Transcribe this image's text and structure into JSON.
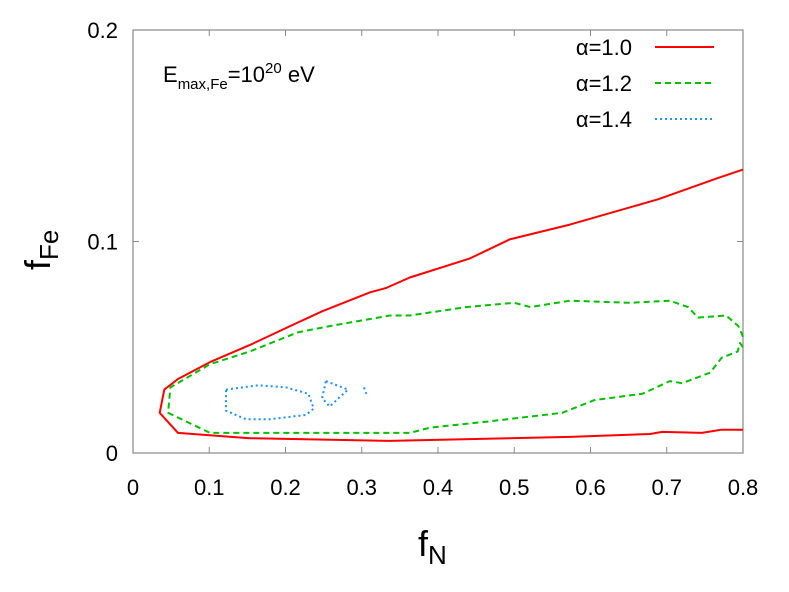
{
  "chart_data": {
    "type": "line",
    "subtype": "contour",
    "xlabel": "f",
    "xlabel_sub": "N",
    "ylabel": "f",
    "ylabel_sub": "Fe",
    "xlim": [
      0,
      0.8
    ],
    "ylim": [
      0,
      0.2
    ],
    "xticks": [
      "0",
      "0.1",
      "0.2",
      "0.3",
      "0.4",
      "0.5",
      "0.6",
      "0.7",
      "0.8"
    ],
    "yticks": [
      "0",
      "0.1",
      "0.2"
    ],
    "grid": false,
    "legend_position": "top-right",
    "annotation": {
      "base": "E",
      "sub": "max,Fe",
      "eq": "=10",
      "sup": "20",
      "unit": " eV"
    },
    "series": [
      {
        "name": "α=1.0",
        "color": "#ff0000",
        "dash": "solid",
        "paths": [
          [
            [
              0.8,
              0.134
            ],
            [
              0.767,
              0.13
            ],
            [
              0.689,
              0.12
            ],
            [
              0.573,
              0.108
            ],
            [
              0.494,
              0.101
            ],
            [
              0.442,
              0.092
            ],
            [
              0.363,
              0.083
            ],
            [
              0.332,
              0.078
            ],
            [
              0.311,
              0.076
            ],
            [
              0.248,
              0.067
            ],
            [
              0.206,
              0.06
            ],
            [
              0.153,
              0.051
            ],
            [
              0.101,
              0.043
            ],
            [
              0.059,
              0.035
            ],
            [
              0.041,
              0.03
            ],
            [
              0.035,
              0.019
            ],
            [
              0.059,
              0.0095
            ],
            [
              0.153,
              0.007
            ],
            [
              0.337,
              0.0057
            ],
            [
              0.573,
              0.0076
            ],
            [
              0.678,
              0.009
            ],
            [
              0.694,
              0.01
            ],
            [
              0.746,
              0.0095
            ],
            [
              0.772,
              0.011
            ],
            [
              0.8,
              0.011
            ]
          ]
        ]
      },
      {
        "name": "α=1.2",
        "color": "#00c000",
        "dash": "dashed",
        "paths": [
          [
            [
              0.8,
              0.055
            ],
            [
              0.794,
              0.06
            ],
            [
              0.778,
              0.065
            ],
            [
              0.741,
              0.064
            ],
            [
              0.728,
              0.069
            ],
            [
              0.704,
              0.072
            ],
            [
              0.652,
              0.071
            ],
            [
              0.573,
              0.072
            ],
            [
              0.521,
              0.069
            ],
            [
              0.5,
              0.071
            ],
            [
              0.437,
              0.069
            ],
            [
              0.363,
              0.065
            ],
            [
              0.337,
              0.065
            ],
            [
              0.258,
              0.06
            ],
            [
              0.216,
              0.057
            ],
            [
              0.153,
              0.048
            ],
            [
              0.101,
              0.042
            ],
            [
              0.049,
              0.031
            ],
            [
              0.046,
              0.019
            ],
            [
              0.101,
              0.0095
            ],
            [
              0.363,
              0.0095
            ],
            [
              0.39,
              0.012
            ],
            [
              0.468,
              0.015
            ],
            [
              0.563,
              0.019
            ],
            [
              0.605,
              0.025
            ],
            [
              0.668,
              0.028
            ],
            [
              0.704,
              0.034
            ],
            [
              0.72,
              0.033
            ],
            [
              0.757,
              0.038
            ],
            [
              0.772,
              0.045
            ],
            [
              0.793,
              0.048
            ],
            [
              0.796,
              0.052
            ],
            [
              0.8,
              0.05
            ]
          ]
        ]
      },
      {
        "name": "α=1.4",
        "color": "#1e90ff",
        "dash": "dotted",
        "paths": [
          [
            [
              0.122,
              0.03
            ],
            [
              0.164,
              0.032
            ],
            [
              0.201,
              0.031
            ],
            [
              0.23,
              0.028
            ],
            [
              0.237,
              0.021
            ],
            [
              0.227,
              0.018
            ],
            [
              0.18,
              0.016
            ],
            [
              0.148,
              0.016
            ],
            [
              0.122,
              0.02
            ],
            [
              0.122,
              0.03
            ]
          ],
          [
            [
              0.253,
              0.034
            ],
            [
              0.282,
              0.03
            ],
            [
              0.258,
              0.022
            ],
            [
              0.248,
              0.026
            ],
            [
              0.253,
              0.034
            ]
          ],
          [
            [
              0.303,
              0.031
            ],
            [
              0.306,
              0.028
            ]
          ]
        ]
      }
    ]
  }
}
